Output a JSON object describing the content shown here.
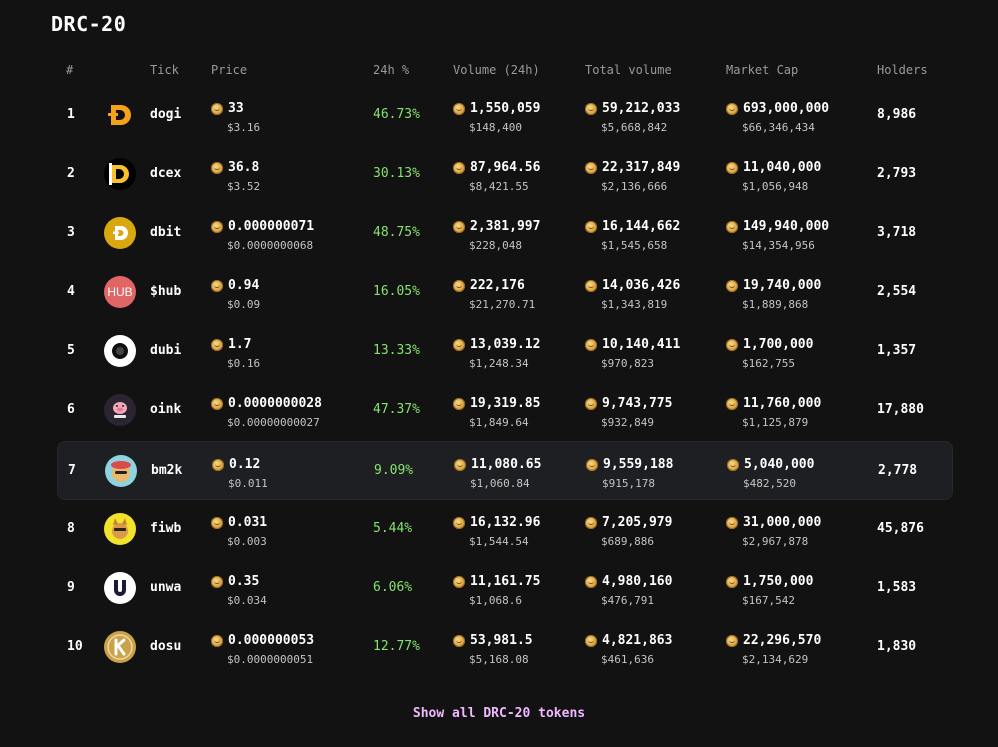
{
  "page": {
    "title": "DRC-20"
  },
  "columns": {
    "rank": "#",
    "tick": "Tick",
    "price": "Price",
    "change": "24h %",
    "volume": "Volume (24h)",
    "total": "Total volume",
    "mcap": "Market Cap",
    "holders": "Holders"
  },
  "colors": {
    "background": "#121212",
    "positive": "#86e36e",
    "link": "#f0b8ff",
    "highlight_row": "#1e1f22"
  },
  "icons": {
    "price_unit": "doge-coin-icon"
  },
  "rows": [
    {
      "rank": "1",
      "tick": "dogi",
      "logo": "dogi-logo",
      "price": "33",
      "price_usd": "$3.16",
      "change": "46.73%",
      "volume": "1,550,059",
      "volume_usd": "$148,400",
      "total": "59,212,033",
      "total_usd": "$5,668,842",
      "mcap": "693,000,000",
      "mcap_usd": "$66,346,434",
      "holders": "8,986"
    },
    {
      "rank": "2",
      "tick": "dcex",
      "logo": "dcex-logo",
      "price": "36.8",
      "price_usd": "$3.52",
      "change": "30.13%",
      "volume": "87,964.56",
      "volume_usd": "$8,421.55",
      "total": "22,317,849",
      "total_usd": "$2,136,666",
      "mcap": "11,040,000",
      "mcap_usd": "$1,056,948",
      "holders": "2,793"
    },
    {
      "rank": "3",
      "tick": "dbit",
      "logo": "dbit-logo",
      "price": "0.000000071",
      "price_usd": "$0.0000000068",
      "change": "48.75%",
      "volume": "2,381,997",
      "volume_usd": "$228,048",
      "total": "16,144,662",
      "total_usd": "$1,545,658",
      "mcap": "149,940,000",
      "mcap_usd": "$14,354,956",
      "holders": "3,718"
    },
    {
      "rank": "4",
      "tick": "$hub",
      "logo": "hub-logo",
      "logo_text": "HUB",
      "price": "0.94",
      "price_usd": "$0.09",
      "change": "16.05%",
      "volume": "222,176",
      "volume_usd": "$21,270.71",
      "total": "14,036,426",
      "total_usd": "$1,343,819",
      "mcap": "19,740,000",
      "mcap_usd": "$1,889,868",
      "holders": "2,554"
    },
    {
      "rank": "5",
      "tick": "dubi",
      "logo": "dubi-logo",
      "price": "1.7",
      "price_usd": "$0.16",
      "change": "13.33%",
      "volume": "13,039.12",
      "volume_usd": "$1,248.34",
      "total": "10,140,411",
      "total_usd": "$970,823",
      "mcap": "1,700,000",
      "mcap_usd": "$162,755",
      "holders": "1,357"
    },
    {
      "rank": "6",
      "tick": "oink",
      "logo": "oink-logo",
      "price": "0.0000000028",
      "price_usd": "$0.00000000027",
      "change": "47.37%",
      "volume": "19,319.85",
      "volume_usd": "$1,849.64",
      "total": "9,743,775",
      "total_usd": "$932,849",
      "mcap": "11,760,000",
      "mcap_usd": "$1,125,879",
      "holders": "17,880"
    },
    {
      "rank": "7",
      "tick": "bm2k",
      "logo": "bm2k-logo",
      "price": "0.12",
      "price_usd": "$0.011",
      "change": "9.09%",
      "volume": "11,080.65",
      "volume_usd": "$1,060.84",
      "total": "9,559,188",
      "total_usd": "$915,178",
      "mcap": "5,040,000",
      "mcap_usd": "$482,520",
      "holders": "2,778"
    },
    {
      "rank": "8",
      "tick": "fiwb",
      "logo": "fiwb-logo",
      "price": "0.031",
      "price_usd": "$0.003",
      "change": "5.44%",
      "volume": "16,132.96",
      "volume_usd": "$1,544.54",
      "total": "7,205,979",
      "total_usd": "$689,886",
      "mcap": "31,000,000",
      "mcap_usd": "$2,967,878",
      "holders": "45,876"
    },
    {
      "rank": "9",
      "tick": "unwa",
      "logo": "unwa-logo",
      "price": "0.35",
      "price_usd": "$0.034",
      "change": "6.06%",
      "volume": "11,161.75",
      "volume_usd": "$1,068.6",
      "total": "4,980,160",
      "total_usd": "$476,791",
      "mcap": "1,750,000",
      "mcap_usd": "$167,542",
      "holders": "1,583"
    },
    {
      "rank": "10",
      "tick": "dosu",
      "logo": "dosu-logo",
      "price": "0.000000053",
      "price_usd": "$0.0000000051",
      "change": "12.77%",
      "volume": "53,981.5",
      "volume_usd": "$5,168.08",
      "total": "4,821,863",
      "total_usd": "$461,636",
      "mcap": "22,296,570",
      "mcap_usd": "$2,134,629",
      "holders": "1,830"
    }
  ],
  "footer": {
    "show_all": "Show all DRC-20 tokens"
  }
}
